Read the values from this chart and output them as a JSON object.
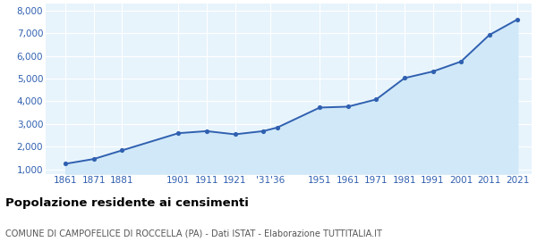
{
  "years": [
    1861,
    1871,
    1881,
    1901,
    1911,
    1921,
    1931,
    1936,
    1951,
    1961,
    1971,
    1981,
    1991,
    2001,
    2011,
    2021
  ],
  "population": [
    1240,
    1450,
    1830,
    2590,
    2680,
    2540,
    2680,
    2840,
    3720,
    3760,
    4080,
    5020,
    5310,
    5750,
    6920,
    7610
  ],
  "x_tick_labels": [
    "1861",
    "1871",
    "1881",
    "1901",
    "1911",
    "1921",
    "'31'36",
    "1951",
    "1961",
    "1971",
    "1981",
    "1991",
    "2001",
    "2011",
    "2021"
  ],
  "x_tick_positions": [
    1861,
    1871,
    1881,
    1901,
    1911,
    1921,
    1933.5,
    1951,
    1961,
    1971,
    1981,
    1991,
    2001,
    2011,
    2021
  ],
  "ylim": [
    800,
    8300
  ],
  "yticks": [
    1000,
    2000,
    3000,
    4000,
    5000,
    6000,
    7000,
    8000
  ],
  "ytick_labels": [
    "1,000",
    "2,000",
    "3,000",
    "4,000",
    "5,000",
    "6,000",
    "7,000",
    "8,000"
  ],
  "line_color": "#3060b0",
  "fill_color": "#d0e8f8",
  "marker_color": "#3060b0",
  "background_color": "#e8f4fc",
  "grid_color": "#ffffff",
  "tick_label_color": "#3060b0",
  "xlim_left": 1854,
  "xlim_right": 2026,
  "title": "Popolazione residente ai censimenti",
  "subtitle": "COMUNE DI CAMPOFELICE DI ROCCELLA (PA) - Dati ISTAT - Elaborazione TUTTITALIA.IT",
  "title_fontsize": 9.5,
  "subtitle_fontsize": 7.0,
  "tick_fontsize": 7.5
}
